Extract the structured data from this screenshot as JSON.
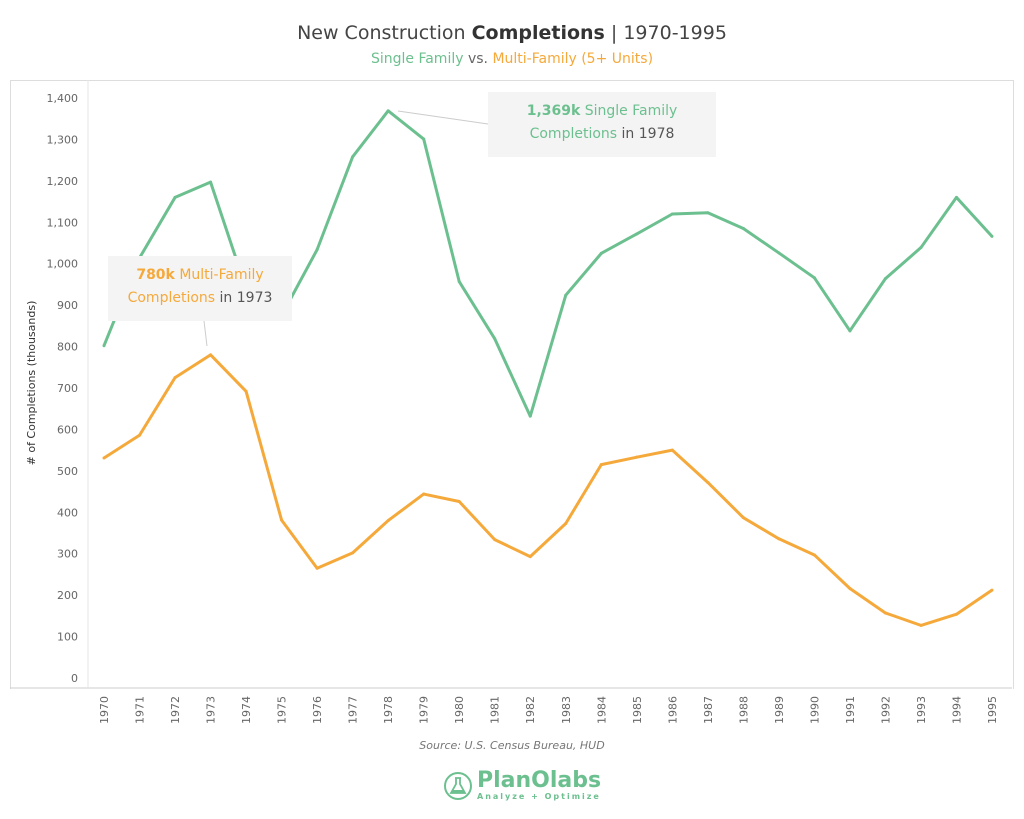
{
  "header": {
    "title_pre": "New Construction ",
    "title_bold": "Completions",
    "title_post": " | 1970-1995",
    "subtitle_a": "Single Family",
    "subtitle_vs": " vs. ",
    "subtitle_b": "Multi-Family (5+ Units)"
  },
  "colors": {
    "single": "#6cc08f",
    "multi": "#f5a93b"
  },
  "chart_data": {
    "type": "line",
    "title": "New Construction Completions | 1970-1995",
    "subtitle": "Single Family vs. Multi-Family (5+ Units)",
    "xlabel": "",
    "ylabel": "# of Completions (thousands)",
    "ylim": [
      0,
      1400
    ],
    "yticks": [
      0,
      100,
      200,
      300,
      400,
      500,
      600,
      700,
      800,
      900,
      "1,000",
      "1,100",
      "1,200",
      "1,300",
      "1,400"
    ],
    "x": [
      1970,
      1971,
      1972,
      1973,
      1974,
      1975,
      1976,
      1977,
      1978,
      1979,
      1980,
      1981,
      1982,
      1983,
      1984,
      1985,
      1986,
      1987,
      1988,
      1989,
      1990,
      1991,
      1992,
      1993,
      1994,
      1995
    ],
    "series": [
      {
        "name": "Single Family",
        "values": [
          802,
          1014,
          1160,
          1197,
          940,
          875,
          1034,
          1258,
          1369,
          1301,
          957,
          819,
          632,
          924,
          1025,
          1072,
          1120,
          1123,
          1085,
          1026,
          966,
          838,
          964,
          1039,
          1160,
          1066
        ]
      },
      {
        "name": "Multi-Family (5+ Units)",
        "values": [
          531,
          586,
          725,
          780,
          692,
          381,
          265,
          302,
          380,
          444,
          426,
          334,
          293,
          373,
          515,
          533,
          550,
          472,
          387,
          336,
          297,
          216,
          157,
          127,
          154,
          212
        ]
      }
    ],
    "grid": false,
    "annotations": [
      {
        "bold": "1,369k",
        "text": " Single Family",
        "line2": "Completions",
        "in": " in ",
        "year": "1978"
      },
      {
        "bold": "780k",
        "text": " Multi-Family",
        "line2": "Completions",
        "in": " in ",
        "year": "1973"
      }
    ]
  },
  "footer": {
    "source": "Source: U.S. Census Bureau, HUD",
    "logo": "PlanOlabs",
    "tagline": "Analyze + Optimize"
  }
}
